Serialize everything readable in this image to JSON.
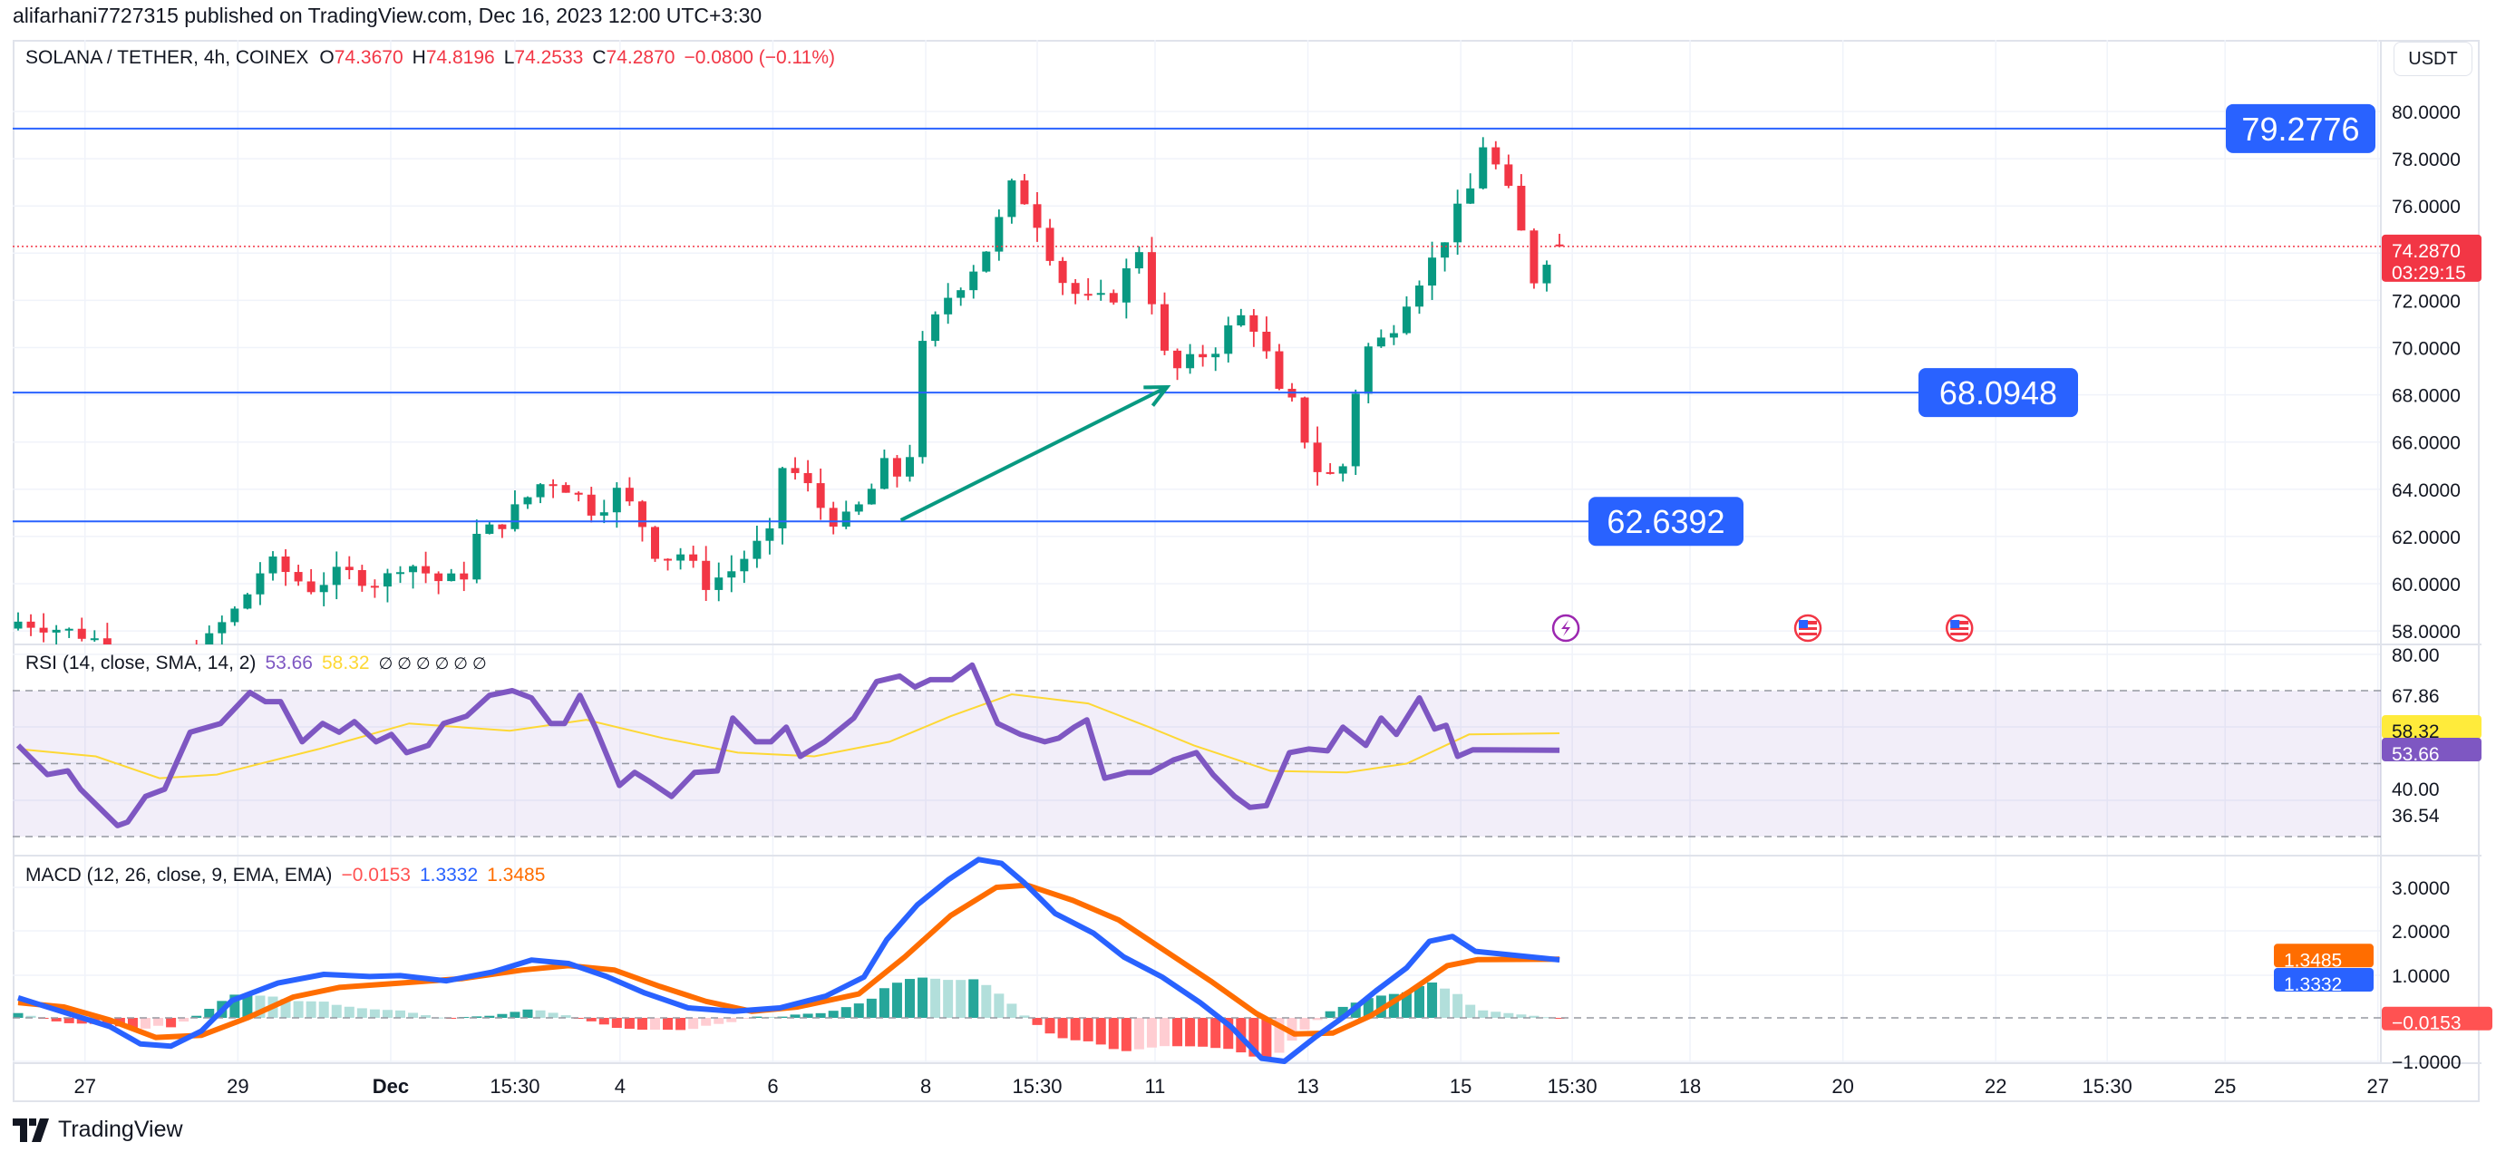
{
  "header": {
    "published": "alifarhani7727315 published on TradingView.com, Dec 16, 2023 12:00 UTC+3:30"
  },
  "legend": {
    "symbol": "SOLANA / TETHER, 4h, COINEX",
    "o_label": "O",
    "o": "74.3670",
    "h_label": "H",
    "h": "74.8196",
    "l_label": "L",
    "l": "74.2533",
    "c_label": "C",
    "c": "74.2870",
    "change": "−0.0800 (−0.11%)"
  },
  "rsi_legend": {
    "title": "RSI (14, close, SMA, 14, 2)",
    "rsi": "53.66",
    "sma": "58.32",
    "empty": "∅ ∅ ∅ ∅ ∅ ∅"
  },
  "macd_legend": {
    "title": "MACD (12, 26, close, 9, EMA, EMA)",
    "hist": "−0.0153",
    "macd": "1.3332",
    "signal": "1.3485"
  },
  "currency_button": "USDT",
  "price_label": {
    "price": "74.2870",
    "countdown": "03:29:15"
  },
  "branding": "TradingView",
  "colors": {
    "up": "#089981",
    "down": "#f23645",
    "hline": "#2962ff",
    "rsi": "#7e57c2",
    "rsi_sma": "#fdd835",
    "macd": "#2962ff",
    "signal": "#ff6d00",
    "arrow": "#089981"
  },
  "chart_data": {
    "type": "candlestick",
    "symbol": "SOLANA / TETHER",
    "interval": "4h",
    "last_candle": {
      "open": 74.367,
      "high": 74.8196,
      "low": 74.2533,
      "close": 74.287
    },
    "price_axis": {
      "range": [
        57,
        82
      ],
      "ticks": [
        "80.0000",
        "78.0000",
        "76.0000",
        "72.0000",
        "70.0000",
        "68.0000",
        "66.0000",
        "64.0000",
        "62.0000",
        "60.0000",
        "58.0000"
      ]
    },
    "x_ticks": [
      {
        "label": "27",
        "t": 5.25
      },
      {
        "label": "29",
        "t": 17.25
      },
      {
        "label": "Dec",
        "t": 29.25,
        "bold": true
      },
      {
        "label": "15:30",
        "t": 39
      },
      {
        "label": "4",
        "t": 47.25
      },
      {
        "label": "6",
        "t": 59.25
      },
      {
        "label": "8",
        "t": 71.25
      },
      {
        "label": "15:30",
        "t": 80
      },
      {
        "label": "11",
        "t": 89.25
      },
      {
        "label": "13",
        "t": 101.25
      },
      {
        "label": "15",
        "t": 113.25
      },
      {
        "label": "15:30",
        "t": 122
      },
      {
        "label": "18",
        "t": 131.25
      },
      {
        "label": "20",
        "t": 143.25
      },
      {
        "label": "22",
        "t": 155.25
      },
      {
        "label": "15:30",
        "t": 164
      },
      {
        "label": "25",
        "t": 173.25
      },
      {
        "label": "27",
        "t": 185.25
      }
    ],
    "close_path": [
      [
        0,
        58.4
      ],
      [
        2.3,
        58.2
      ],
      [
        5.4,
        57.8
      ],
      [
        8.5,
        57
      ],
      [
        12.3,
        56.5
      ],
      [
        14.8,
        57.5
      ],
      [
        16,
        58.3
      ],
      [
        17.3,
        59
      ],
      [
        18.5,
        60
      ],
      [
        19.5,
        61
      ],
      [
        21,
        60.5
      ],
      [
        22.9,
        59.8
      ],
      [
        25.4,
        60.5
      ],
      [
        28.5,
        60
      ],
      [
        30.3,
        61
      ],
      [
        31.6,
        60.6
      ],
      [
        33.4,
        60
      ],
      [
        35.3,
        60.5
      ],
      [
        36,
        62
      ],
      [
        37.8,
        62.5
      ],
      [
        39.7,
        63.5
      ],
      [
        41.5,
        64.5
      ],
      [
        43.4,
        64
      ],
      [
        45.3,
        63
      ],
      [
        47.2,
        64
      ],
      [
        49,
        62.5
      ],
      [
        50.3,
        61
      ],
      [
        52.1,
        61.3
      ],
      [
        54,
        60
      ],
      [
        55.9,
        60.5
      ],
      [
        57.7,
        61.5
      ],
      [
        59,
        62
      ],
      [
        59.8,
        65
      ],
      [
        61.5,
        64.5
      ],
      [
        63.3,
        63
      ],
      [
        64.6,
        62.5
      ],
      [
        66.5,
        63.5
      ],
      [
        68,
        65
      ],
      [
        69.3,
        64.5
      ],
      [
        70.3,
        66
      ],
      [
        71,
        70
      ],
      [
        72.7,
        72
      ],
      [
        74.5,
        73
      ],
      [
        76.4,
        74.5
      ],
      [
        78,
        76.8
      ],
      [
        79.5,
        76
      ],
      [
        81,
        74
      ],
      [
        82.3,
        72.5
      ],
      [
        83.9,
        72
      ],
      [
        85.8,
        72
      ],
      [
        87.3,
        73.5
      ],
      [
        88.3,
        74.5
      ],
      [
        89.6,
        70
      ],
      [
        90.8,
        69
      ],
      [
        92.3,
        69.5
      ],
      [
        94,
        70
      ],
      [
        95.3,
        71
      ],
      [
        96.5,
        71.5
      ],
      [
        97.8,
        70
      ],
      [
        99,
        68
      ],
      [
        100.3,
        67.5
      ],
      [
        101.6,
        65
      ],
      [
        102.8,
        64.5
      ],
      [
        104,
        65
      ],
      [
        104.9,
        68
      ],
      [
        106,
        70
      ],
      [
        107.6,
        70.5
      ],
      [
        108.9,
        72
      ],
      [
        110.1,
        73
      ],
      [
        111.4,
        74
      ],
      [
        112.7,
        75.5
      ],
      [
        113.9,
        76.5
      ],
      [
        115.2,
        79
      ],
      [
        116.4,
        77
      ],
      [
        117.7,
        76
      ],
      [
        118.6,
        72.5
      ],
      [
        119.6,
        73.5
      ],
      [
        120.6,
        74.3
      ],
      [
        121,
        74.367
      ]
    ],
    "horizontal_lines": [
      {
        "price": 79.2776,
        "label": "79.2776"
      },
      {
        "price": 68.0948,
        "label": "68.0948"
      },
      {
        "price": 62.6392,
        "label": "62.6392"
      }
    ],
    "arrow": {
      "from": [
        69.3,
        62.69
      ],
      "to": [
        90.2,
        68.33
      ]
    },
    "events": [
      {
        "t": 121.5,
        "type": "lightning"
      },
      {
        "t": 140.5,
        "type": "us-economic"
      },
      {
        "t": 152.4,
        "type": "us-economic"
      }
    ],
    "rsi": {
      "axis_labels": [
        "80.00",
        "67.86",
        "40.00",
        "36.54"
      ],
      "band": [
        30,
        70
      ],
      "values": [
        [
          0,
          55
        ],
        [
          2.3,
          47
        ],
        [
          3.9,
          48
        ],
        [
          4.9,
          43
        ],
        [
          7.8,
          33
        ],
        [
          8.6,
          34
        ],
        [
          10,
          41
        ],
        [
          11.5,
          43
        ],
        [
          13.5,
          58.6
        ],
        [
          15.9,
          61
        ],
        [
          18.2,
          69.5
        ],
        [
          19.4,
          67
        ],
        [
          20.6,
          67
        ],
        [
          22.3,
          56
        ],
        [
          23.9,
          61
        ],
        [
          25.2,
          58.6
        ],
        [
          26.4,
          61.5
        ],
        [
          28.1,
          56
        ],
        [
          29.3,
          58
        ],
        [
          30.5,
          53
        ],
        [
          32.2,
          55
        ],
        [
          33.4,
          61
        ],
        [
          35.2,
          63
        ],
        [
          37,
          68.7
        ],
        [
          38.8,
          70
        ],
        [
          40.3,
          68
        ],
        [
          41.8,
          61
        ],
        [
          42.9,
          61
        ],
        [
          44.1,
          68.7
        ],
        [
          45.3,
          60
        ],
        [
          47.2,
          44
        ],
        [
          48.4,
          47.6
        ],
        [
          49.6,
          45
        ],
        [
          51.3,
          41
        ],
        [
          53.1,
          47.6
        ],
        [
          54.9,
          48
        ],
        [
          56.1,
          62.5
        ],
        [
          57.9,
          56
        ],
        [
          59.1,
          56
        ],
        [
          60.3,
          60
        ],
        [
          61.4,
          52
        ],
        [
          63.3,
          56
        ],
        [
          65.6,
          62.5
        ],
        [
          67.4,
          72.5
        ],
        [
          69.2,
          74
        ],
        [
          70.4,
          71
        ],
        [
          71.6,
          73
        ],
        [
          73.3,
          73
        ],
        [
          74.9,
          77
        ],
        [
          76.9,
          61
        ],
        [
          78.7,
          58
        ],
        [
          80.6,
          56
        ],
        [
          81.7,
          57
        ],
        [
          82.9,
          60
        ],
        [
          83.9,
          62
        ],
        [
          85.3,
          46
        ],
        [
          87.1,
          47.6
        ],
        [
          88.9,
          47.6
        ],
        [
          90.7,
          51
        ],
        [
          92.5,
          53
        ],
        [
          93.8,
          47
        ],
        [
          95.5,
          41
        ],
        [
          96.7,
          38
        ],
        [
          98,
          38.5
        ],
        [
          99.8,
          53
        ],
        [
          101.3,
          54
        ],
        [
          102.8,
          53.5
        ],
        [
          104,
          60
        ],
        [
          105.8,
          55
        ],
        [
          107,
          62.5
        ],
        [
          108.2,
          58
        ],
        [
          110,
          68
        ],
        [
          111.2,
          59.5
        ],
        [
          112.1,
          60.5
        ],
        [
          113,
          52
        ],
        [
          114.2,
          53.8
        ],
        [
          121,
          53.66
        ]
      ],
      "sma": [
        [
          0,
          54
        ],
        [
          6.1,
          52
        ],
        [
          11.1,
          46
        ],
        [
          15.6,
          47
        ],
        [
          23.6,
          54
        ],
        [
          30.7,
          61
        ],
        [
          38.6,
          59
        ],
        [
          44.6,
          62
        ],
        [
          50.6,
          57
        ],
        [
          56.5,
          53
        ],
        [
          62.5,
          52
        ],
        [
          68.4,
          56
        ],
        [
          73.2,
          63
        ],
        [
          78,
          69
        ],
        [
          84,
          66.5
        ],
        [
          88.8,
          60
        ],
        [
          92.3,
          55
        ],
        [
          98.3,
          48
        ],
        [
          104.3,
          47.6
        ],
        [
          109,
          50
        ],
        [
          113.9,
          58
        ],
        [
          121,
          58.32
        ]
      ],
      "last_rsi": "53.66",
      "last_sma": "58.32"
    },
    "macd": {
      "axis_labels": [
        "3.0000",
        "2.0000",
        "1.0000",
        "−1.0000"
      ],
      "macd": [
        [
          0,
          0.46
        ],
        [
          3.6,
          0.13
        ],
        [
          7.2,
          -0.2
        ],
        [
          9.6,
          -0.6
        ],
        [
          12,
          -0.65
        ],
        [
          14.4,
          -0.3
        ],
        [
          16.8,
          0.4
        ],
        [
          20.4,
          0.8
        ],
        [
          24,
          1.0
        ],
        [
          27.6,
          0.95
        ],
        [
          30,
          0.97
        ],
        [
          33.6,
          0.85
        ],
        [
          37.2,
          1.05
        ],
        [
          40.3,
          1.33
        ],
        [
          43.2,
          1.25
        ],
        [
          46.2,
          0.95
        ],
        [
          49.2,
          0.57
        ],
        [
          52.6,
          0.23
        ],
        [
          56.2,
          0.15
        ],
        [
          59.8,
          0.23
        ],
        [
          63.4,
          0.5
        ],
        [
          66.4,
          0.94
        ],
        [
          68.2,
          1.8
        ],
        [
          70.6,
          2.6
        ],
        [
          73,
          3.17
        ],
        [
          75.4,
          3.64
        ],
        [
          77.2,
          3.55
        ],
        [
          79,
          3.1
        ],
        [
          81.4,
          2.4
        ],
        [
          84.4,
          1.95
        ],
        [
          86.8,
          1.4
        ],
        [
          89.8,
          0.94
        ],
        [
          92.8,
          0.35
        ],
        [
          95.2,
          -0.2
        ],
        [
          97.6,
          -0.93
        ],
        [
          99.4,
          -1.0
        ],
        [
          101.8,
          -0.45
        ],
        [
          104.2,
          0.05
        ],
        [
          106.6,
          0.62
        ],
        [
          109,
          1.15
        ],
        [
          110.8,
          1.76
        ],
        [
          112.6,
          1.87
        ],
        [
          114.4,
          1.53
        ],
        [
          121,
          1.3332
        ]
      ],
      "signal": [
        [
          0,
          0.35
        ],
        [
          3.6,
          0.25
        ],
        [
          7.2,
          -0.05
        ],
        [
          10.8,
          -0.45
        ],
        [
          14.4,
          -0.4
        ],
        [
          18,
          0.0
        ],
        [
          21.6,
          0.48
        ],
        [
          25.2,
          0.7
        ],
        [
          30,
          0.8
        ],
        [
          34.8,
          0.9
        ],
        [
          39.6,
          1.1
        ],
        [
          43.2,
          1.2
        ],
        [
          46.8,
          1.1
        ],
        [
          50.4,
          0.72
        ],
        [
          54,
          0.38
        ],
        [
          57.6,
          0.15
        ],
        [
          61.2,
          0.25
        ],
        [
          66,
          0.55
        ],
        [
          69.6,
          1.4
        ],
        [
          73.2,
          2.35
        ],
        [
          76.8,
          3.0
        ],
        [
          79.2,
          3.05
        ],
        [
          82.8,
          2.7
        ],
        [
          86.4,
          2.25
        ],
        [
          90,
          1.55
        ],
        [
          93.6,
          0.85
        ],
        [
          97.2,
          0.1
        ],
        [
          100.2,
          -0.37
        ],
        [
          103.2,
          -0.35
        ],
        [
          106.2,
          0.05
        ],
        [
          109.2,
          0.6
        ],
        [
          112.2,
          1.2
        ],
        [
          114.6,
          1.34
        ],
        [
          121,
          1.3485
        ]
      ],
      "last_hist": "−0.0153",
      "last_macd": "1.3332",
      "last_signal": "1.3485"
    }
  }
}
